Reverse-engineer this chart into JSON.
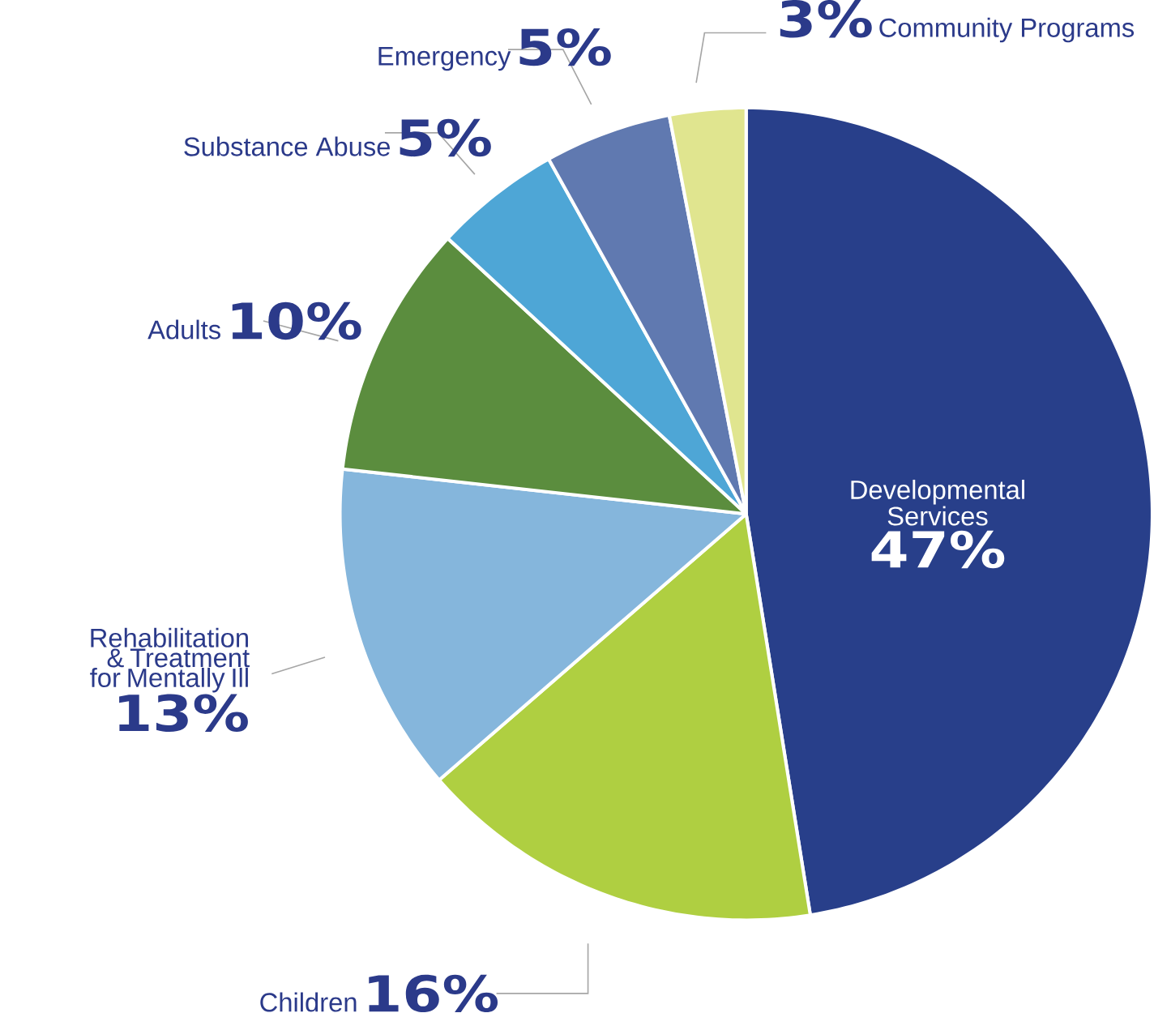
{
  "chart_data": {
    "type": "pie",
    "categories": [
      "Developmental Services",
      "Children",
      "Rehabilitation & Treatment for Mentally Ill",
      "Adults",
      "Substance Abuse",
      "Emergency",
      "Community Programs"
    ],
    "values": [
      47,
      16,
      13,
      10,
      5,
      5,
      3
    ],
    "value_labels": [
      "47%",
      "16%",
      "13%",
      "10%",
      "5%",
      "5%",
      "3%"
    ],
    "colors": [
      "#283f8a",
      "#afcf41",
      "#85b6dc",
      "#5b8d3e",
      "#4ea6d6",
      "#6079b0",
      "#e0e58f"
    ]
  }
}
